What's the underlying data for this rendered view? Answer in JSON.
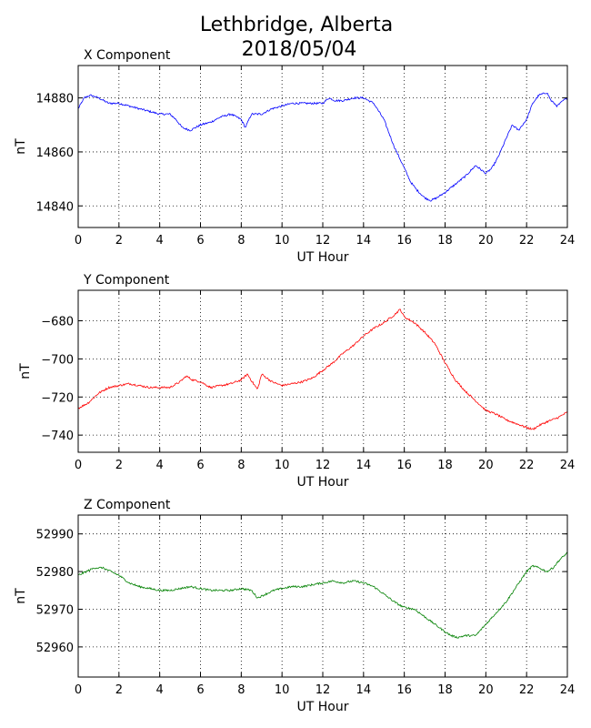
{
  "figure": {
    "title_line1": "Lethbridge, Alberta",
    "title_line2": "2018/05/04"
  },
  "chart_data": [
    {
      "type": "line",
      "title": "X Component",
      "xlabel": "UT Hour",
      "ylabel": "nT",
      "xlim": [
        0,
        24
      ],
      "ylim": [
        14832,
        14892
      ],
      "xticks": [
        0,
        2,
        4,
        6,
        8,
        10,
        12,
        14,
        16,
        18,
        20,
        22,
        24
      ],
      "yticks": [
        14840,
        14860,
        14880
      ],
      "grid": true,
      "color": "#0000ff",
      "series": [
        {
          "x": [
            0,
            0.3,
            0.6,
            1.0,
            1.5,
            2.0,
            2.5,
            3.0,
            3.5,
            4.0,
            4.5,
            4.8,
            5.1,
            5.5,
            6.0,
            6.5,
            7.0,
            7.5,
            8.0,
            8.2,
            8.5,
            9.0,
            9.5,
            10.0,
            10.5,
            11.0,
            11.5,
            12.0,
            12.3,
            12.6,
            13.0,
            13.5,
            14.0,
            14.5,
            15.0,
            15.5,
            16.0,
            16.3,
            16.6,
            17.0,
            17.3,
            17.6,
            18.0,
            18.5,
            19.0,
            19.5,
            20.0,
            20.3,
            20.6,
            21.0,
            21.3,
            21.6,
            22.0,
            22.3,
            22.6,
            23.0,
            23.2,
            23.5,
            23.8,
            24.0
          ],
          "y": [
            14876,
            14880,
            14881,
            14880,
            14878,
            14878,
            14877,
            14876,
            14875,
            14874,
            14874,
            14872,
            14869,
            14868,
            14870,
            14871,
            14873,
            14874,
            14872,
            14869,
            14874,
            14874,
            14876,
            14877,
            14878,
            14878,
            14878,
            14878,
            14880,
            14879,
            14879,
            14880,
            14880,
            14878,
            14872,
            14862,
            14854,
            14849,
            14846,
            14843,
            14842,
            14843,
            14845,
            14848,
            14851,
            14855,
            14852,
            14854,
            14858,
            14865,
            14870,
            14868,
            14872,
            14878,
            14881,
            14882,
            14879,
            14877,
            14879,
            14880
          ]
        }
      ]
    },
    {
      "type": "line",
      "title": "Y Component",
      "xlabel": "UT Hour",
      "ylabel": "nT",
      "xlim": [
        0,
        24
      ],
      "ylim": [
        -749,
        -664
      ],
      "xticks": [
        0,
        2,
        4,
        6,
        8,
        10,
        12,
        14,
        16,
        18,
        20,
        22,
        24
      ],
      "yticks": [
        -680,
        -700,
        -720,
        -740
      ],
      "grid": true,
      "color": "#ff0000",
      "series": [
        {
          "x": [
            0,
            0.5,
            1.0,
            1.5,
            2.0,
            2.5,
            3.0,
            3.5,
            4.0,
            4.5,
            5.0,
            5.3,
            5.6,
            6.0,
            6.5,
            7.0,
            7.5,
            8.0,
            8.3,
            8.6,
            8.8,
            9.0,
            9.5,
            10.0,
            10.5,
            11.0,
            11.5,
            12.0,
            12.5,
            13.0,
            13.5,
            14.0,
            14.5,
            15.0,
            15.5,
            15.8,
            16.0,
            16.5,
            17.0,
            17.5,
            18.0,
            18.5,
            19.0,
            19.5,
            20.0,
            20.5,
            21.0,
            21.5,
            22.0,
            22.3,
            22.6,
            23.0,
            23.5,
            24.0
          ],
          "y": [
            -726,
            -723,
            -718,
            -715,
            -714,
            -713,
            -714,
            -715,
            -715,
            -715,
            -712,
            -709,
            -711,
            -712,
            -715,
            -714,
            -713,
            -711,
            -708,
            -713,
            -716,
            -708,
            -712,
            -714,
            -713,
            -712,
            -710,
            -706,
            -702,
            -697,
            -693,
            -688,
            -684,
            -681,
            -677,
            -674,
            -678,
            -681,
            -686,
            -692,
            -702,
            -711,
            -717,
            -722,
            -727,
            -729,
            -732,
            -734,
            -736,
            -737,
            -735,
            -733,
            -731,
            -728
          ]
        }
      ]
    },
    {
      "type": "line",
      "title": "Z Component",
      "xlabel": "UT Hour",
      "ylabel": "nT",
      "xlim": [
        0,
        24
      ],
      "ylim": [
        52952,
        52995
      ],
      "xticks": [
        0,
        2,
        4,
        6,
        8,
        10,
        12,
        14,
        16,
        18,
        20,
        22,
        24
      ],
      "yticks": [
        52960,
        52970,
        52980,
        52990
      ],
      "grid": true,
      "color": "#008000",
      "series": [
        {
          "x": [
            0,
            0.4,
            0.8,
            1.2,
            1.6,
            2.0,
            2.5,
            3.0,
            3.5,
            4.0,
            4.5,
            5.0,
            5.5,
            6.0,
            6.5,
            7.0,
            7.5,
            8.0,
            8.5,
            8.8,
            9.2,
            9.6,
            10.0,
            10.5,
            11.0,
            11.5,
            12.0,
            12.5,
            13.0,
            13.5,
            14.0,
            14.5,
            15.0,
            15.5,
            15.8,
            16.0,
            16.5,
            17.0,
            17.5,
            18.0,
            18.3,
            18.6,
            19.0,
            19.5,
            20.0,
            20.5,
            21.0,
            21.5,
            22.0,
            22.3,
            22.6,
            23.0,
            23.3,
            23.6,
            24.0
          ],
          "y": [
            52979,
            52980,
            52981,
            52981,
            52980,
            52979,
            52977,
            52976,
            52975.5,
            52975,
            52975,
            52975.5,
            52976,
            52975.5,
            52975,
            52975,
            52975,
            52975.5,
            52975,
            52973,
            52974,
            52975,
            52975.5,
            52976,
            52976,
            52976.5,
            52977,
            52977.5,
            52977,
            52977.5,
            52977,
            52976,
            52974,
            52972,
            52971,
            52970.5,
            52970,
            52968,
            52966,
            52964,
            52963,
            52962.5,
            52963,
            52963,
            52966,
            52969,
            52972,
            52976,
            52980,
            52981.5,
            52981,
            52980,
            52981,
            52983,
            52985
          ]
        }
      ]
    }
  ]
}
